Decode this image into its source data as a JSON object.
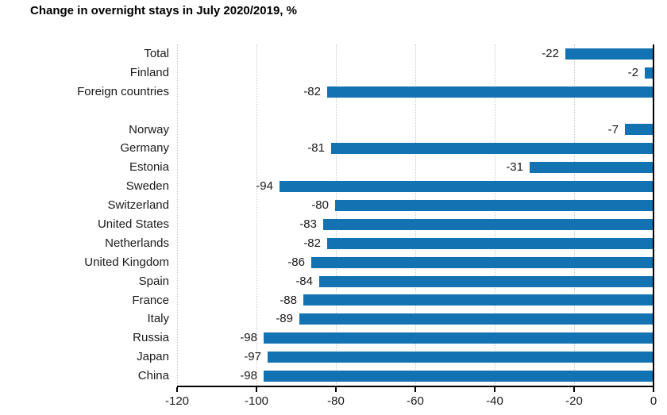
{
  "header": {
    "title": "Change in overnight stays in July 2020/2019, %"
  },
  "chart_data": {
    "type": "bar",
    "orientation": "horizontal",
    "title": "Change in overnight stays in July 2020/2019, %",
    "categories": [
      "Total",
      "Finland",
      "Foreign countries",
      "",
      "Norway",
      "Germany",
      "Estonia",
      "Sweden",
      "Switzerland",
      "United States",
      "Netherlands",
      "United Kingdom",
      "Spain",
      "France",
      "Italy",
      "Russia",
      "Japan",
      "China"
    ],
    "values": [
      -22,
      -2,
      -82,
      null,
      -7,
      -81,
      -31,
      -94,
      -80,
      -83,
      -82,
      -86,
      -84,
      -88,
      -89,
      -98,
      -97,
      -98
    ],
    "xlabel": "",
    "ylabel": "",
    "xlim": [
      -120,
      0
    ],
    "xticks": [
      -120,
      -100,
      -80,
      -60,
      -40,
      -20,
      0
    ],
    "grid": "vertical-dotted",
    "legend": "none",
    "value_labels": true,
    "colors": {
      "bar": "#1272b2",
      "grid": "#c9c9c9",
      "axis": "#000000",
      "text": "#1a1a1a",
      "title": "#000000"
    }
  }
}
